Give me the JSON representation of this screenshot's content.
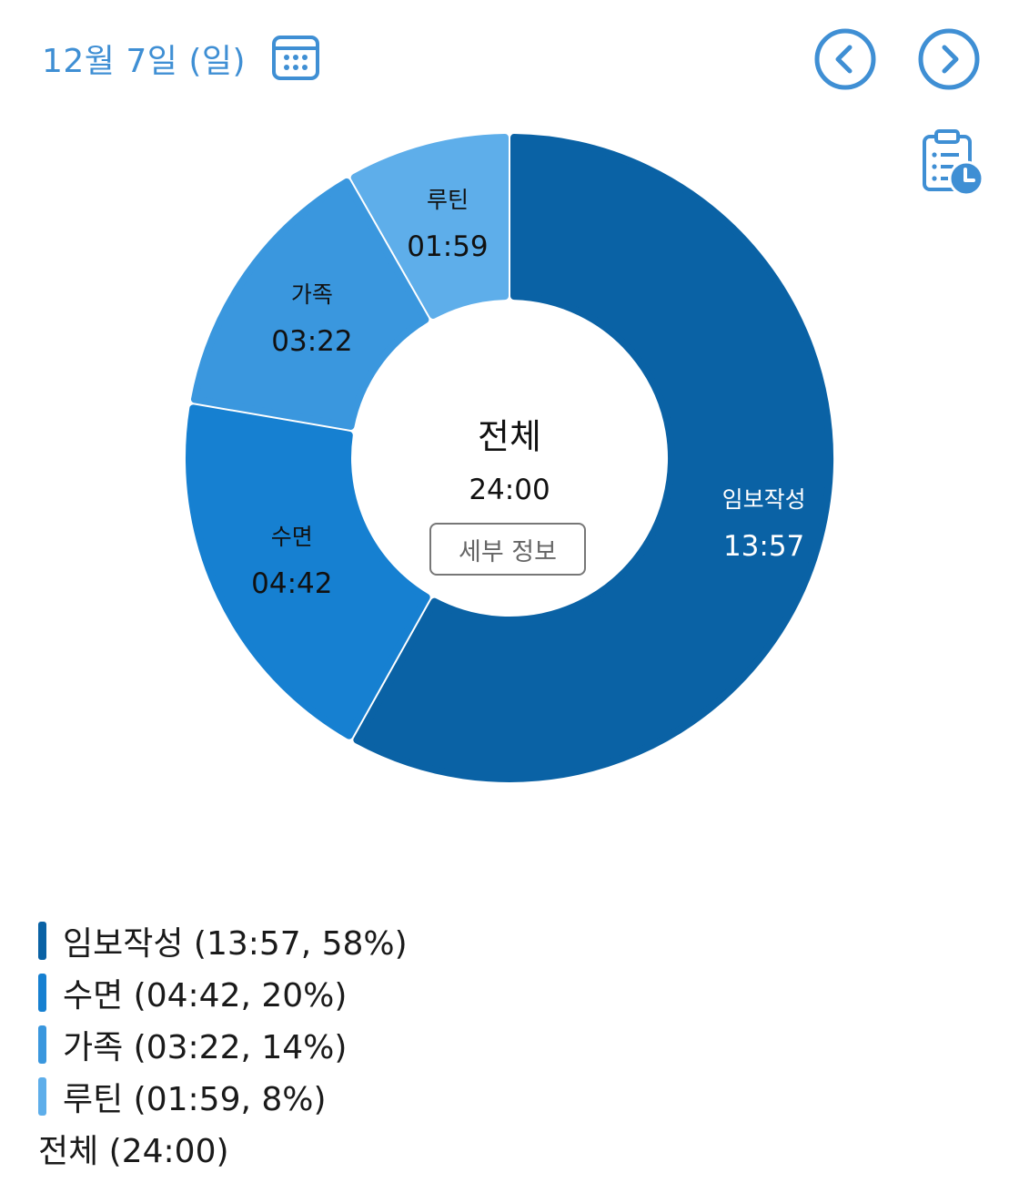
{
  "header": {
    "date_label": "12월 7일 (일)",
    "calendar_icon": "calendar-icon",
    "prev_icon": "chevron-left-circle-icon",
    "next_icon": "chevron-right-circle-icon",
    "plan_icon": "clipboard-clock-icon",
    "accent_color": "#3f8fd4"
  },
  "chart_data": {
    "type": "donut",
    "center": {
      "title": "전체",
      "total": "24:00",
      "detail_button": "세부 정보"
    },
    "series": [
      {
        "name": "임보작성",
        "time": "13:57",
        "value": 13.95,
        "percent": 58,
        "color": "#0a62a5",
        "label_color": "#ffffff",
        "legend": "임보작성 (13:57, 58%)"
      },
      {
        "name": "수면",
        "time": "04:42",
        "value": 4.7,
        "percent": 20,
        "color": "#1680d1",
        "label_color": "#111111",
        "legend": "수면 (04:42, 20%)"
      },
      {
        "name": "가족",
        "time": "03:22",
        "value": 3.367,
        "percent": 14,
        "color": "#3a97de",
        "label_color": "#111111",
        "legend": "가족 (03:22, 14%)"
      },
      {
        "name": "루틴",
        "time": "01:59",
        "value": 1.983,
        "percent": 8,
        "color": "#5eaeea",
        "label_color": "#111111",
        "legend": "루틴 (01:59, 8%)"
      }
    ],
    "legend_total": "전체 (24:00)"
  }
}
